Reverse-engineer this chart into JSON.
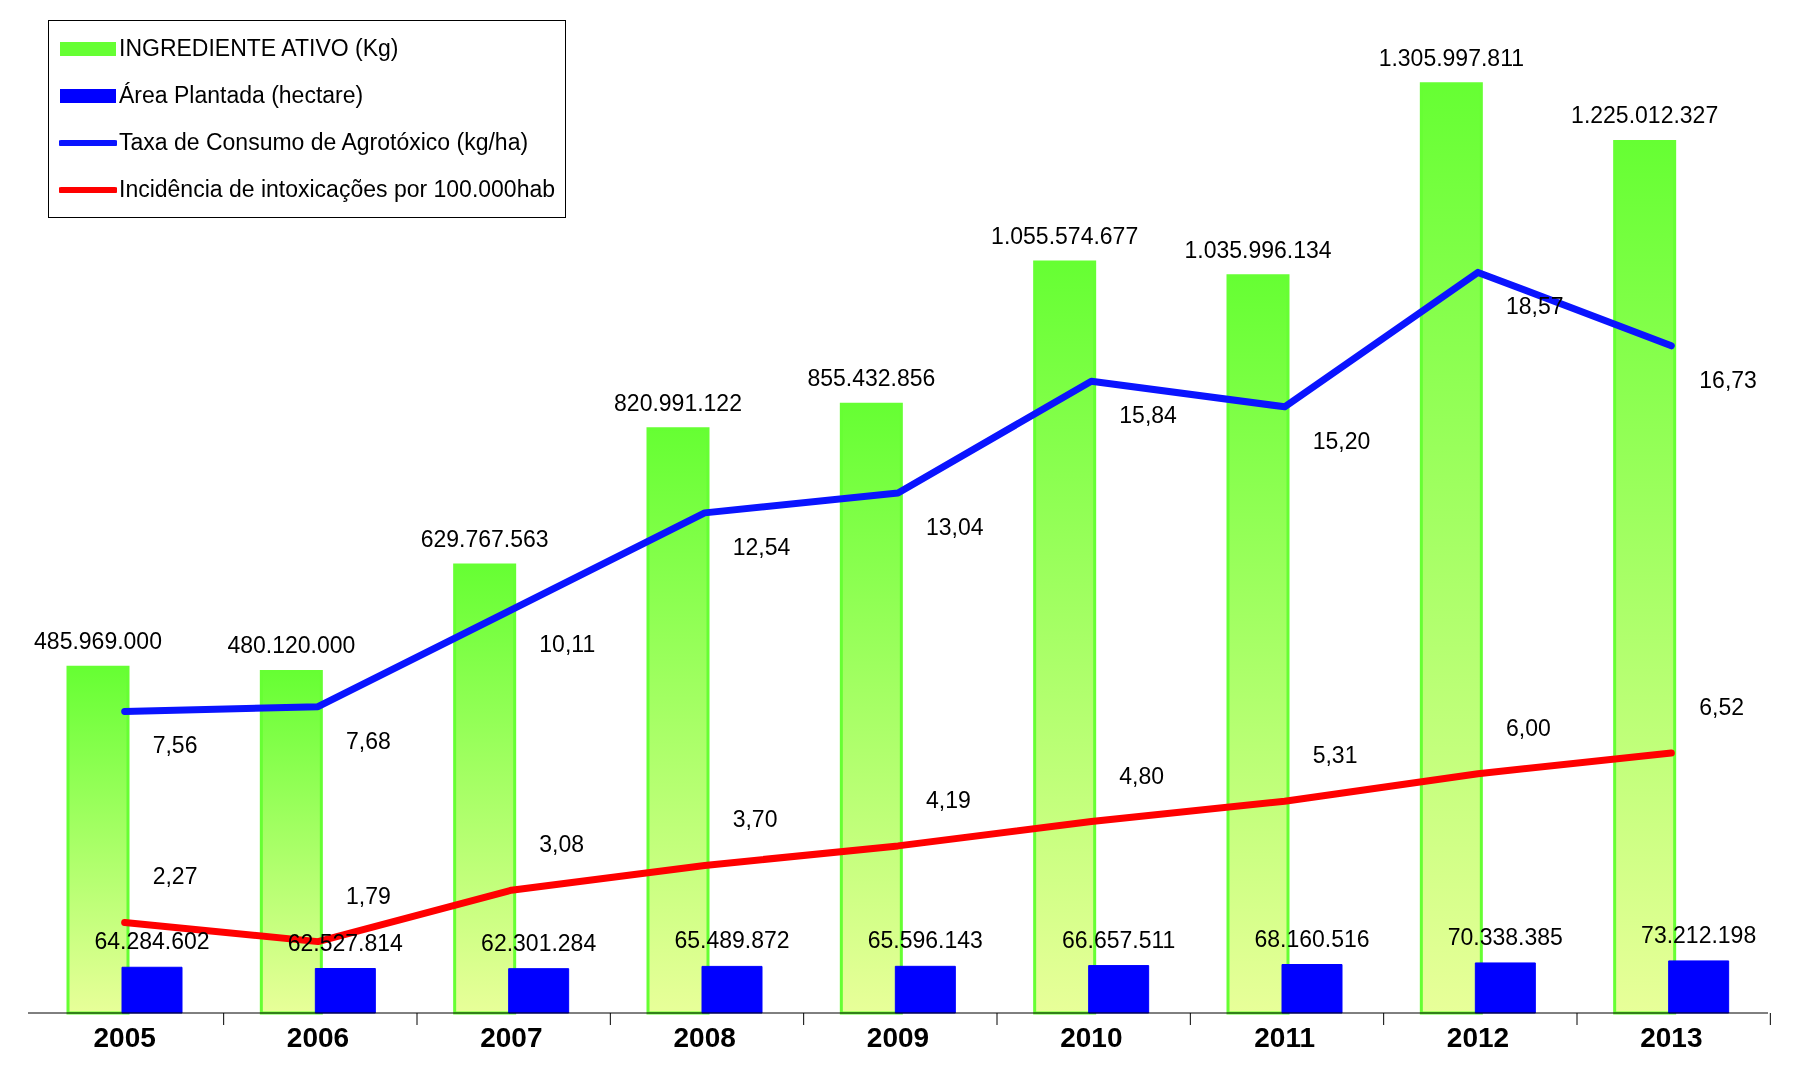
{
  "chart_data": {
    "type": "bar",
    "categories": [
      "2005",
      "2006",
      "2007",
      "2008",
      "2009",
      "2010",
      "2011",
      "2012",
      "2013"
    ],
    "series": [
      {
        "name": "INGREDIENTE ATIVO (Kg)",
        "color": "#66ff33",
        "values": [
          485969000,
          480120000,
          629767563,
          820991122,
          855432856,
          1055574677,
          1035996134,
          1305997811,
          1225012327
        ],
        "value_labels": [
          "485.969.000",
          "480.120.000",
          "629.767.563",
          "820.991.122",
          "855.432.856",
          "1.055.574.677",
          "1.035.996.134",
          "1.305.997.811",
          "1.225.012.327"
        ]
      },
      {
        "name": "Área Plantada (hectare)",
        "color": "#0000ff",
        "values": [
          64284602,
          62527814,
          62301284,
          65489872,
          65596143,
          66657511,
          68160516,
          70338385,
          73212198
        ],
        "value_labels": [
          "64.284.602",
          "62.527.814",
          "62.301.284",
          "65.489.872",
          "65.596.143",
          "66.657.511",
          "68.160.516",
          "70.338.385",
          "73.212.198"
        ]
      },
      {
        "name": "Taxa de Consumo de Agrotóxico (kg/ha)",
        "type": "line",
        "axis": "y2",
        "color": "#0a14ff",
        "values": [
          7.56,
          7.68,
          10.11,
          12.54,
          13.04,
          15.84,
          15.2,
          18.57,
          16.73
        ],
        "value_labels": [
          "7,56",
          "7,68",
          "10,11",
          "12,54",
          "13,04",
          "15,84",
          "15,20",
          "18,57",
          "16,73"
        ]
      },
      {
        "name": "Incidência de intoxicações por 100.000hab",
        "type": "line",
        "axis": "y2",
        "color": "#ff0000",
        "values": [
          2.27,
          1.79,
          3.08,
          3.7,
          4.19,
          4.8,
          5.31,
          6.0,
          6.52
        ],
        "value_labels": [
          "2,27",
          "1,79",
          "3,08",
          "3,70",
          "4,19",
          "4,80",
          "5,31",
          "6,00",
          "6,52"
        ]
      }
    ],
    "tick_labels": "x",
    "legend": "top left",
    "grid": false,
    "marker": "none"
  }
}
